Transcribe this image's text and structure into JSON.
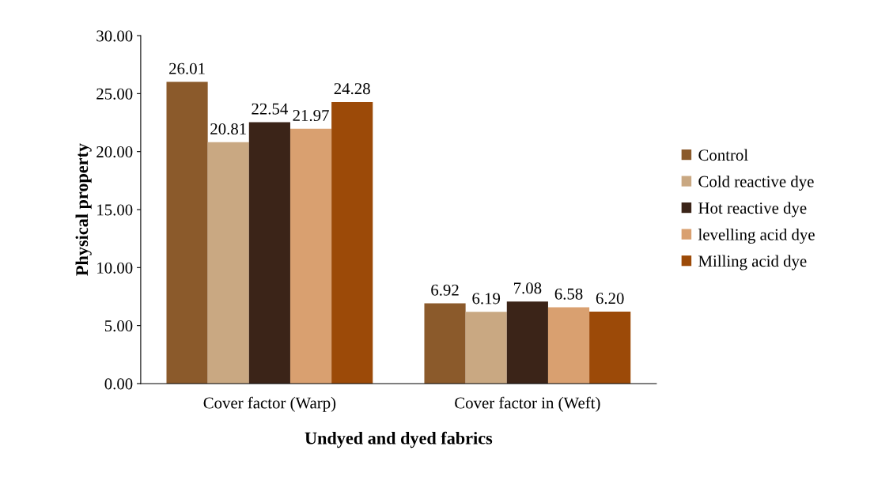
{
  "chart_data": {
    "type": "bar",
    "xlabel": "Undyed and dyed fabrics",
    "ylabel": "Physical property",
    "categories": [
      "Cover factor (Warp)",
      "Cover factor in (Weft)"
    ],
    "series": [
      {
        "name": "Control",
        "color": "#8b5a2b",
        "values": [
          26.01,
          6.92
        ],
        "value_labels": [
          "26.01",
          "6.92"
        ]
      },
      {
        "name": "Cold reactive dye",
        "color": "#c9a882",
        "values": [
          20.81,
          6.19
        ],
        "value_labels": [
          "20.81",
          "6.19"
        ]
      },
      {
        "name": "Hot reactive dye",
        "color": "#3b2418",
        "values": [
          22.54,
          7.08
        ],
        "value_labels": [
          "22.54",
          "7.08"
        ]
      },
      {
        "name": "levelling acid dye",
        "color": "#d9a070",
        "values": [
          21.97,
          6.58
        ],
        "value_labels": [
          "21.97",
          "6.58"
        ]
      },
      {
        "name": "Milling acid dye",
        "color": "#9c4a08",
        "values": [
          24.28,
          6.2
        ],
        "value_labels": [
          "24.28",
          "6.20"
        ]
      }
    ],
    "ylim": [
      0,
      30
    ],
    "yticks": [
      {
        "value": 0,
        "label": "0.00"
      },
      {
        "value": 5,
        "label": "5.00"
      },
      {
        "value": 10,
        "label": "10.00"
      },
      {
        "value": 15,
        "label": "15.00"
      },
      {
        "value": 20,
        "label": "20.00"
      },
      {
        "value": 25,
        "label": "25.00"
      },
      {
        "value": 30,
        "label": "30.00"
      }
    ],
    "grid": false,
    "legend": "right"
  }
}
